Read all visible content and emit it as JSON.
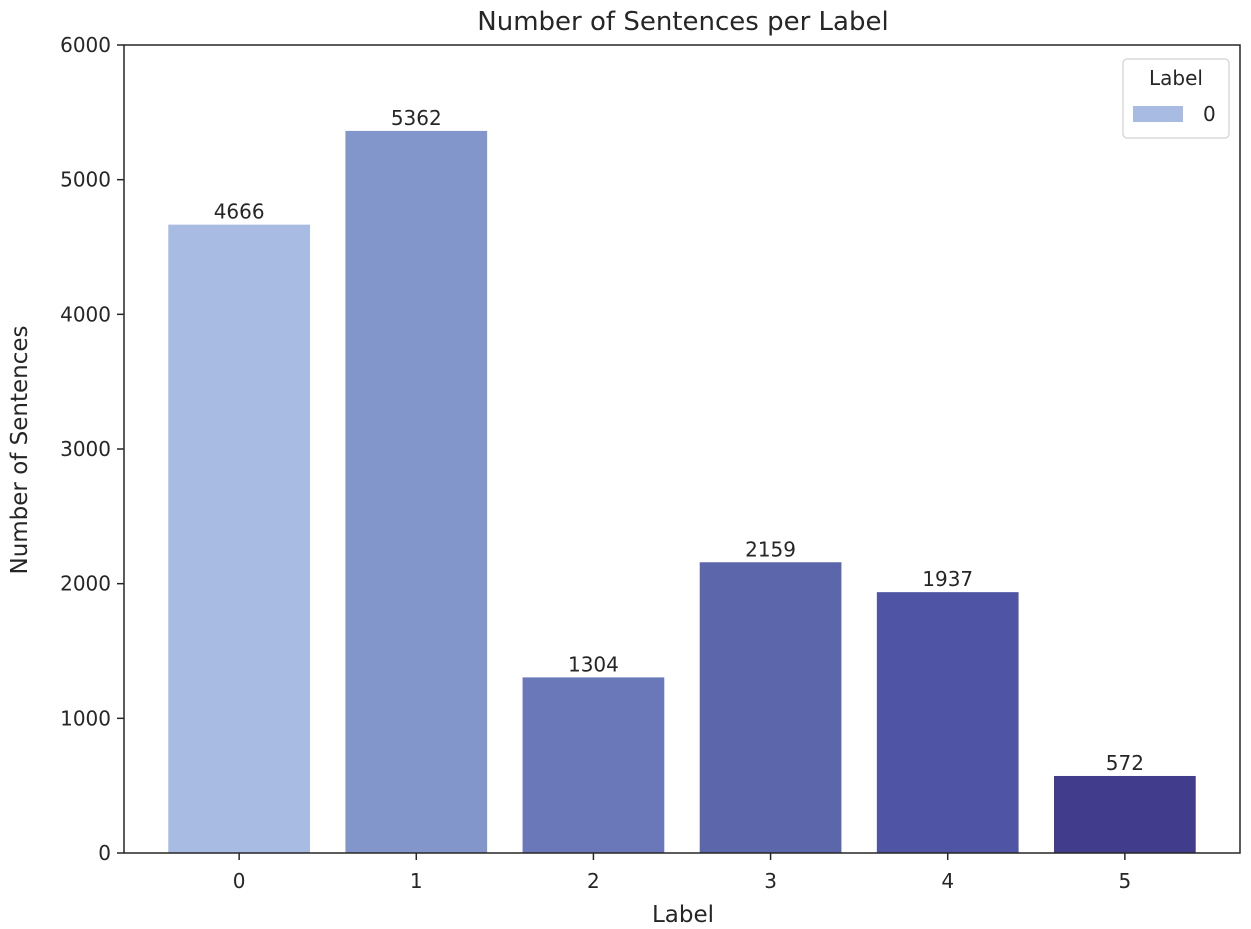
{
  "chart_data": {
    "type": "bar",
    "title": "Number of Sentences per Label",
    "xlabel": "Label",
    "ylabel": "Number of Sentences",
    "categories": [
      "0",
      "1",
      "2",
      "3",
      "4",
      "5"
    ],
    "values": [
      4666,
      5362,
      1304,
      2159,
      1937,
      572
    ],
    "data_labels": [
      "4666",
      "5362",
      "1304",
      "2159",
      "1937",
      "572"
    ],
    "bar_colors": [
      "#a8bbe2",
      "#8396cb",
      "#6a78b9",
      "#5b66ab",
      "#5054a4",
      "#413d8c"
    ],
    "ylim": [
      0,
      6000
    ],
    "yticks": [
      0,
      1000,
      2000,
      3000,
      4000,
      5000,
      6000
    ],
    "ytick_labels": [
      "0",
      "1000",
      "2000",
      "3000",
      "4000",
      "5000",
      "6000"
    ],
    "grid": false,
    "legend": {
      "title": "Label",
      "placement": "top-right",
      "entries": [
        {
          "label": "0",
          "color": "#a8bbe2"
        }
      ]
    }
  }
}
